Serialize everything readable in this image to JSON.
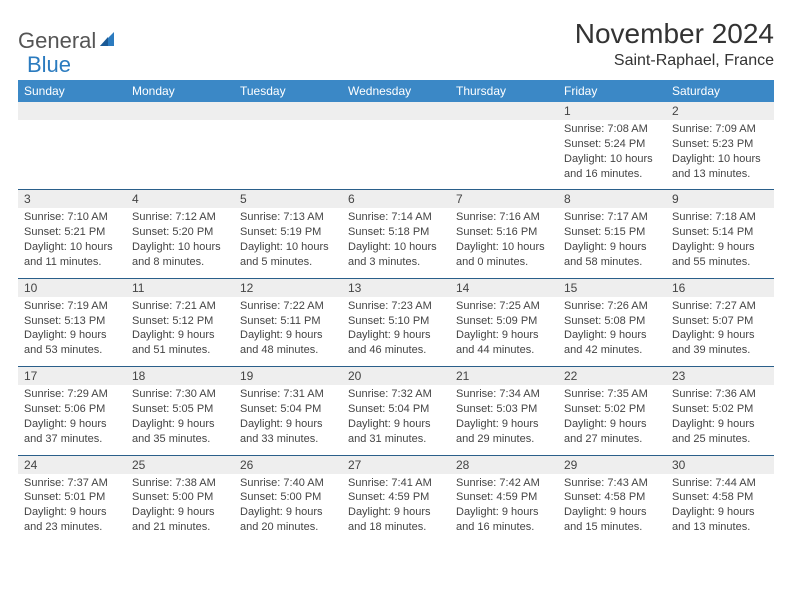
{
  "logo": {
    "part1": "General",
    "part2": "Blue"
  },
  "title": "November 2024",
  "location": "Saint-Raphael, France",
  "day_headers": [
    "Sunday",
    "Monday",
    "Tuesday",
    "Wednesday",
    "Thursday",
    "Friday",
    "Saturday"
  ],
  "colors": {
    "header_bg": "#3b88c6",
    "header_text": "#ffffff",
    "row_border": "#2a5f8a",
    "daynum_bg": "#eeeeee",
    "logo_blue": "#2b7bbf"
  },
  "weeks": [
    [
      null,
      null,
      null,
      null,
      null,
      {
        "n": "1",
        "sr": "Sunrise: 7:08 AM",
        "ss": "Sunset: 5:24 PM",
        "d1": "Daylight: 10 hours",
        "d2": "and 16 minutes."
      },
      {
        "n": "2",
        "sr": "Sunrise: 7:09 AM",
        "ss": "Sunset: 5:23 PM",
        "d1": "Daylight: 10 hours",
        "d2": "and 13 minutes."
      }
    ],
    [
      {
        "n": "3",
        "sr": "Sunrise: 7:10 AM",
        "ss": "Sunset: 5:21 PM",
        "d1": "Daylight: 10 hours",
        "d2": "and 11 minutes."
      },
      {
        "n": "4",
        "sr": "Sunrise: 7:12 AM",
        "ss": "Sunset: 5:20 PM",
        "d1": "Daylight: 10 hours",
        "d2": "and 8 minutes."
      },
      {
        "n": "5",
        "sr": "Sunrise: 7:13 AM",
        "ss": "Sunset: 5:19 PM",
        "d1": "Daylight: 10 hours",
        "d2": "and 5 minutes."
      },
      {
        "n": "6",
        "sr": "Sunrise: 7:14 AM",
        "ss": "Sunset: 5:18 PM",
        "d1": "Daylight: 10 hours",
        "d2": "and 3 minutes."
      },
      {
        "n": "7",
        "sr": "Sunrise: 7:16 AM",
        "ss": "Sunset: 5:16 PM",
        "d1": "Daylight: 10 hours",
        "d2": "and 0 minutes."
      },
      {
        "n": "8",
        "sr": "Sunrise: 7:17 AM",
        "ss": "Sunset: 5:15 PM",
        "d1": "Daylight: 9 hours",
        "d2": "and 58 minutes."
      },
      {
        "n": "9",
        "sr": "Sunrise: 7:18 AM",
        "ss": "Sunset: 5:14 PM",
        "d1": "Daylight: 9 hours",
        "d2": "and 55 minutes."
      }
    ],
    [
      {
        "n": "10",
        "sr": "Sunrise: 7:19 AM",
        "ss": "Sunset: 5:13 PM",
        "d1": "Daylight: 9 hours",
        "d2": "and 53 minutes."
      },
      {
        "n": "11",
        "sr": "Sunrise: 7:21 AM",
        "ss": "Sunset: 5:12 PM",
        "d1": "Daylight: 9 hours",
        "d2": "and 51 minutes."
      },
      {
        "n": "12",
        "sr": "Sunrise: 7:22 AM",
        "ss": "Sunset: 5:11 PM",
        "d1": "Daylight: 9 hours",
        "d2": "and 48 minutes."
      },
      {
        "n": "13",
        "sr": "Sunrise: 7:23 AM",
        "ss": "Sunset: 5:10 PM",
        "d1": "Daylight: 9 hours",
        "d2": "and 46 minutes."
      },
      {
        "n": "14",
        "sr": "Sunrise: 7:25 AM",
        "ss": "Sunset: 5:09 PM",
        "d1": "Daylight: 9 hours",
        "d2": "and 44 minutes."
      },
      {
        "n": "15",
        "sr": "Sunrise: 7:26 AM",
        "ss": "Sunset: 5:08 PM",
        "d1": "Daylight: 9 hours",
        "d2": "and 42 minutes."
      },
      {
        "n": "16",
        "sr": "Sunrise: 7:27 AM",
        "ss": "Sunset: 5:07 PM",
        "d1": "Daylight: 9 hours",
        "d2": "and 39 minutes."
      }
    ],
    [
      {
        "n": "17",
        "sr": "Sunrise: 7:29 AM",
        "ss": "Sunset: 5:06 PM",
        "d1": "Daylight: 9 hours",
        "d2": "and 37 minutes."
      },
      {
        "n": "18",
        "sr": "Sunrise: 7:30 AM",
        "ss": "Sunset: 5:05 PM",
        "d1": "Daylight: 9 hours",
        "d2": "and 35 minutes."
      },
      {
        "n": "19",
        "sr": "Sunrise: 7:31 AM",
        "ss": "Sunset: 5:04 PM",
        "d1": "Daylight: 9 hours",
        "d2": "and 33 minutes."
      },
      {
        "n": "20",
        "sr": "Sunrise: 7:32 AM",
        "ss": "Sunset: 5:04 PM",
        "d1": "Daylight: 9 hours",
        "d2": "and 31 minutes."
      },
      {
        "n": "21",
        "sr": "Sunrise: 7:34 AM",
        "ss": "Sunset: 5:03 PM",
        "d1": "Daylight: 9 hours",
        "d2": "and 29 minutes."
      },
      {
        "n": "22",
        "sr": "Sunrise: 7:35 AM",
        "ss": "Sunset: 5:02 PM",
        "d1": "Daylight: 9 hours",
        "d2": "and 27 minutes."
      },
      {
        "n": "23",
        "sr": "Sunrise: 7:36 AM",
        "ss": "Sunset: 5:02 PM",
        "d1": "Daylight: 9 hours",
        "d2": "and 25 minutes."
      }
    ],
    [
      {
        "n": "24",
        "sr": "Sunrise: 7:37 AM",
        "ss": "Sunset: 5:01 PM",
        "d1": "Daylight: 9 hours",
        "d2": "and 23 minutes."
      },
      {
        "n": "25",
        "sr": "Sunrise: 7:38 AM",
        "ss": "Sunset: 5:00 PM",
        "d1": "Daylight: 9 hours",
        "d2": "and 21 minutes."
      },
      {
        "n": "26",
        "sr": "Sunrise: 7:40 AM",
        "ss": "Sunset: 5:00 PM",
        "d1": "Daylight: 9 hours",
        "d2": "and 20 minutes."
      },
      {
        "n": "27",
        "sr": "Sunrise: 7:41 AM",
        "ss": "Sunset: 4:59 PM",
        "d1": "Daylight: 9 hours",
        "d2": "and 18 minutes."
      },
      {
        "n": "28",
        "sr": "Sunrise: 7:42 AM",
        "ss": "Sunset: 4:59 PM",
        "d1": "Daylight: 9 hours",
        "d2": "and 16 minutes."
      },
      {
        "n": "29",
        "sr": "Sunrise: 7:43 AM",
        "ss": "Sunset: 4:58 PM",
        "d1": "Daylight: 9 hours",
        "d2": "and 15 minutes."
      },
      {
        "n": "30",
        "sr": "Sunrise: 7:44 AM",
        "ss": "Sunset: 4:58 PM",
        "d1": "Daylight: 9 hours",
        "d2": "and 13 minutes."
      }
    ]
  ]
}
